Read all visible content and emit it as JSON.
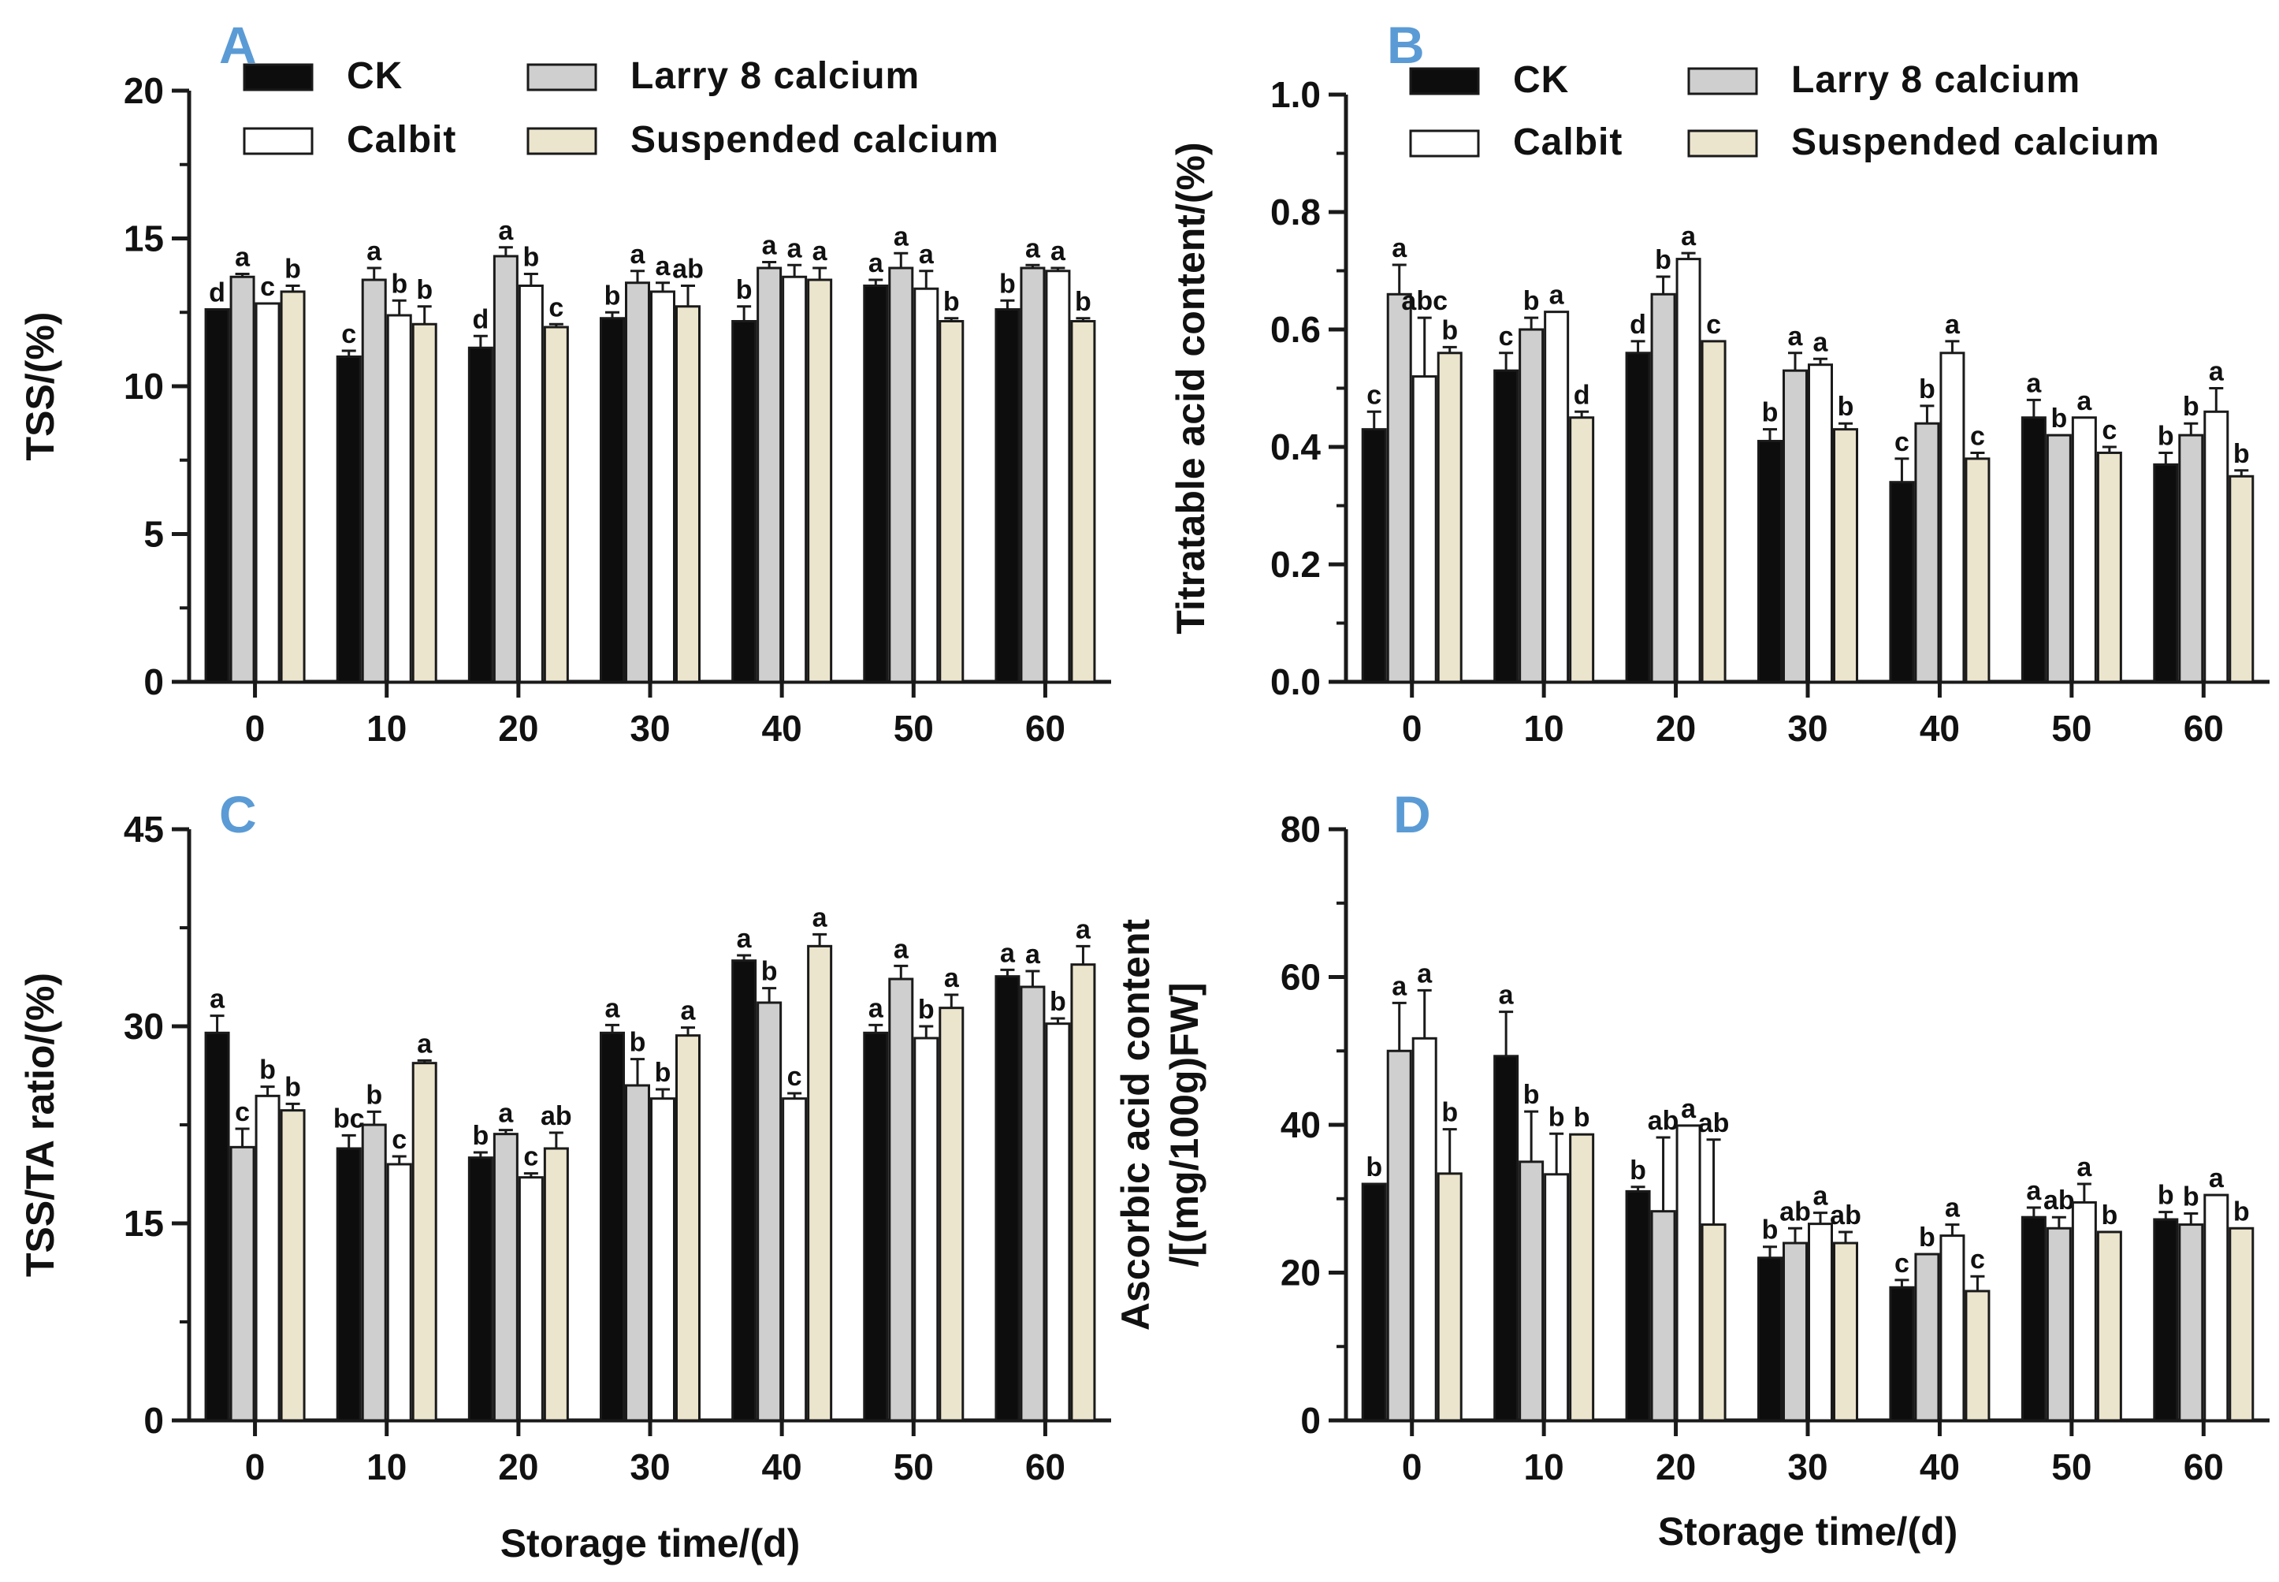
{
  "series_names": [
    "CK",
    "Larry 8 calcium",
    "Calbit",
    "Suspended calcium"
  ],
  "colors": {
    "CK": "#0d0d0d",
    "Larry 8 calcium": "#cfcfcf",
    "Calbit": "#ffffff",
    "Suspended calcium": "#ece5cd",
    "axis": "#1a1a1a",
    "panel_letter": "#5b9bd5"
  },
  "chart_data": [
    {
      "id": "A",
      "type": "bar",
      "panel_letter": "A",
      "ylabel": "TSS/(%)",
      "xlabel": "",
      "ylim": [
        0,
        20
      ],
      "yticks": [
        0,
        5,
        10,
        15,
        20
      ],
      "categories": [
        "0",
        "10",
        "20",
        "30",
        "40",
        "50",
        "60"
      ],
      "legend": {
        "placement": "top",
        "labels": [
          "CK",
          "Larry 8 calcium",
          "Calbit",
          "Suspended calcium"
        ]
      },
      "series": [
        {
          "name": "CK",
          "values": [
            12.6,
            11.0,
            11.3,
            12.3,
            12.2,
            13.4,
            12.6
          ],
          "errors": [
            0.0,
            0.2,
            0.4,
            0.2,
            0.5,
            0.2,
            0.3
          ],
          "letters": [
            "d",
            "c",
            "d",
            "b",
            "b",
            "a",
            "b"
          ]
        },
        {
          "name": "Larry 8 calcium",
          "values": [
            13.7,
            13.6,
            14.4,
            13.5,
            14.0,
            14.0,
            14.0
          ],
          "errors": [
            0.1,
            0.4,
            0.3,
            0.4,
            0.2,
            0.5,
            0.1
          ],
          "letters": [
            "a",
            "a",
            "a",
            "a",
            "a",
            "a",
            "a"
          ]
        },
        {
          "name": "Calbit",
          "values": [
            12.8,
            12.4,
            13.4,
            13.2,
            13.7,
            13.3,
            13.9
          ],
          "errors": [
            0.0,
            0.5,
            0.4,
            0.3,
            0.4,
            0.6,
            0.1
          ],
          "letters": [
            "c",
            "b",
            "b",
            "a",
            "a",
            "a",
            "a"
          ]
        },
        {
          "name": "Suspended calcium",
          "values": [
            13.2,
            12.1,
            12.0,
            12.7,
            13.6,
            12.2,
            12.2
          ],
          "errors": [
            0.2,
            0.6,
            0.1,
            0.7,
            0.4,
            0.1,
            0.1
          ],
          "letters": [
            "b",
            "b",
            "c",
            "ab",
            "a",
            "b",
            "b"
          ]
        }
      ]
    },
    {
      "id": "B",
      "type": "bar",
      "panel_letter": "B",
      "ylabel": "Titratable acid content/(%)",
      "xlabel": "",
      "ylim": [
        0,
        1.0
      ],
      "yticks": [
        0.0,
        0.2,
        0.4,
        0.6,
        0.8,
        1.0
      ],
      "ytick_labels": [
        "0.0",
        "0.2",
        "0.4",
        "0.6",
        "0.8",
        "1.0"
      ],
      "categories": [
        "0",
        "10",
        "20",
        "30",
        "40",
        "50",
        "60"
      ],
      "legend": {
        "placement": "top",
        "labels": [
          "CK",
          "Larry 8 calcium",
          "Calbit",
          "Suspended calcium"
        ]
      },
      "series": [
        {
          "name": "CK",
          "values": [
            0.43,
            0.53,
            0.56,
            0.41,
            0.34,
            0.45,
            0.37
          ],
          "errors": [
            0.03,
            0.03,
            0.02,
            0.02,
            0.04,
            0.03,
            0.02
          ],
          "letters": [
            "c",
            "c",
            "d",
            "b",
            "c",
            "a",
            "b"
          ]
        },
        {
          "name": "Larry 8 calcium",
          "values": [
            0.66,
            0.6,
            0.66,
            0.53,
            0.44,
            0.42,
            0.42
          ],
          "errors": [
            0.05,
            0.02,
            0.03,
            0.03,
            0.03,
            0.0,
            0.02
          ],
          "letters": [
            "a",
            "b",
            "b",
            "a",
            "b",
            "b",
            "b"
          ]
        },
        {
          "name": "Calbit",
          "values": [
            0.52,
            0.63,
            0.72,
            0.54,
            0.56,
            0.45,
            0.46
          ],
          "errors": [
            0.1,
            0.0,
            0.01,
            0.01,
            0.02,
            0.0,
            0.04
          ],
          "letters": [
            "abc",
            "a",
            "a",
            "a",
            "a",
            "a",
            "a"
          ]
        },
        {
          "name": "Suspended calcium",
          "values": [
            0.56,
            0.45,
            0.58,
            0.43,
            0.38,
            0.39,
            0.35
          ],
          "errors": [
            0.01,
            0.01,
            0.0,
            0.01,
            0.01,
            0.01,
            0.01
          ],
          "letters": [
            "b",
            "d",
            "c",
            "b",
            "c",
            "c",
            "b"
          ]
        }
      ]
    },
    {
      "id": "C",
      "type": "bar",
      "panel_letter": "C",
      "ylabel": "TSS/TA ratio/(%)",
      "xlabel": "Storage time/(d)",
      "ylim": [
        0,
        45
      ],
      "yticks": [
        0,
        15,
        30,
        45
      ],
      "categories": [
        "0",
        "10",
        "20",
        "30",
        "40",
        "50",
        "60"
      ],
      "series": [
        {
          "name": "CK",
          "values": [
            29.5,
            20.7,
            20.0,
            29.5,
            35.0,
            29.5,
            33.8
          ],
          "errors": [
            1.3,
            1.0,
            0.4,
            0.6,
            0.4,
            0.6,
            0.5
          ],
          "letters": [
            "a",
            "bc",
            "b",
            "a",
            "a",
            "a",
            "a"
          ]
        },
        {
          "name": "Larry 8 calcium",
          "values": [
            20.8,
            22.5,
            21.8,
            25.5,
            31.8,
            33.6,
            33.0
          ],
          "errors": [
            1.4,
            1.0,
            0.3,
            2.0,
            1.1,
            1.0,
            1.2
          ],
          "letters": [
            "c",
            "b",
            "a",
            "b",
            "b",
            "a",
            "a"
          ]
        },
        {
          "name": "Calbit",
          "values": [
            24.7,
            19.5,
            18.5,
            24.5,
            24.5,
            29.1,
            30.2
          ],
          "errors": [
            0.7,
            0.6,
            0.3,
            0.7,
            0.4,
            0.9,
            0.4
          ],
          "letters": [
            "b",
            "c",
            "c",
            "b",
            "c",
            "b",
            "b"
          ]
        },
        {
          "name": "Suspended calcium",
          "values": [
            23.6,
            27.2,
            20.7,
            29.3,
            36.1,
            31.4,
            34.7
          ],
          "errors": [
            0.5,
            0.2,
            1.2,
            0.6,
            0.9,
            1.0,
            1.4
          ],
          "letters": [
            "b",
            "a",
            "ab",
            "a",
            "a",
            "a",
            "a"
          ]
        }
      ]
    },
    {
      "id": "D",
      "type": "bar",
      "panel_letter": "D",
      "ylabel": "Ascorbic acid content /[(mg/100g)FW]",
      "ylabel_lines": [
        "Ascorbic acid content",
        "/[(mg/100g)FW]"
      ],
      "xlabel": "Storage time/(d)",
      "ylim": [
        0,
        80
      ],
      "yticks": [
        0,
        20,
        40,
        60,
        80
      ],
      "categories": [
        "0",
        "10",
        "20",
        "30",
        "40",
        "50",
        "60"
      ],
      "series": [
        {
          "name": "CK",
          "values": [
            32.0,
            49.3,
            31.0,
            22.0,
            18.0,
            27.5,
            27.2
          ],
          "errors": [
            0.0,
            6.0,
            0.6,
            1.5,
            1.0,
            1.3,
            1.0
          ],
          "letters": [
            "b",
            "a",
            "b",
            "b",
            "c",
            "a",
            "b"
          ]
        },
        {
          "name": "Larry 8 calcium",
          "values": [
            50.0,
            35.0,
            28.3,
            24.0,
            22.5,
            26.0,
            26.5
          ],
          "errors": [
            6.5,
            6.8,
            10.0,
            2.0,
            0.0,
            1.5,
            1.5
          ],
          "letters": [
            "a",
            "b",
            "ab",
            "ab",
            "b",
            "ab",
            "b"
          ]
        },
        {
          "name": "Calbit",
          "values": [
            51.7,
            33.3,
            39.9,
            26.6,
            25.0,
            29.5,
            30.5
          ],
          "errors": [
            6.5,
            5.5,
            0.0,
            1.5,
            1.5,
            2.5,
            0.0
          ],
          "letters": [
            "a",
            "b",
            "a",
            "a",
            "a",
            "a",
            "a"
          ]
        },
        {
          "name": "Suspended calcium",
          "values": [
            33.4,
            38.7,
            26.5,
            24.0,
            17.5,
            25.5,
            26.0
          ],
          "errors": [
            6.0,
            0.0,
            11.5,
            1.5,
            2.0,
            0.0,
            0.0
          ],
          "letters": [
            "b",
            "b",
            "ab",
            "ab",
            "c",
            "b",
            "b"
          ]
        }
      ]
    }
  ]
}
